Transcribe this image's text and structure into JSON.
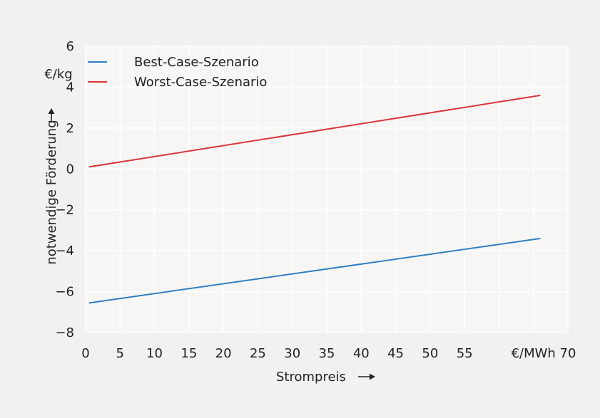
{
  "chart_data": {
    "type": "line",
    "title": "",
    "xlabel": "Strompreis",
    "ylabel": "notwendige Förderung",
    "yunit": "€/kg",
    "x_unit_tick_label": "€/MWh",
    "xlim": [
      0,
      70
    ],
    "ylim": [
      -8,
      6
    ],
    "x_ticks": [
      0,
      5,
      10,
      15,
      20,
      25,
      30,
      35,
      40,
      45,
      50,
      55,
      60,
      65,
      70
    ],
    "x_tick_labels": [
      "0",
      "5",
      "10",
      "15",
      "20",
      "25",
      "30",
      "35",
      "40",
      "45",
      "50",
      "55",
      "",
      "€/MWh",
      "70"
    ],
    "y_ticks": [
      -8,
      -6,
      -4,
      -2,
      0,
      2,
      4,
      6
    ],
    "y_tick_labels": [
      "−8",
      "−6",
      "−4",
      "−2",
      "0",
      "2",
      "4",
      "6"
    ],
    "grid": true,
    "legend_position": "top-left",
    "series": [
      {
        "name": "Best-Case-Szenario",
        "color": "#2f7fc4",
        "x": [
          0.5,
          66
        ],
        "y": [
          -6.55,
          -3.4
        ]
      },
      {
        "name": "Worst-Case-Szenario",
        "color": "#d9363e",
        "x": [
          0.5,
          66
        ],
        "y": [
          0.1,
          3.6
        ]
      }
    ],
    "colors": {
      "page_background": "#f2f1ef",
      "plot_background": "#f7f6f4",
      "grid": "#ffffff"
    }
  }
}
